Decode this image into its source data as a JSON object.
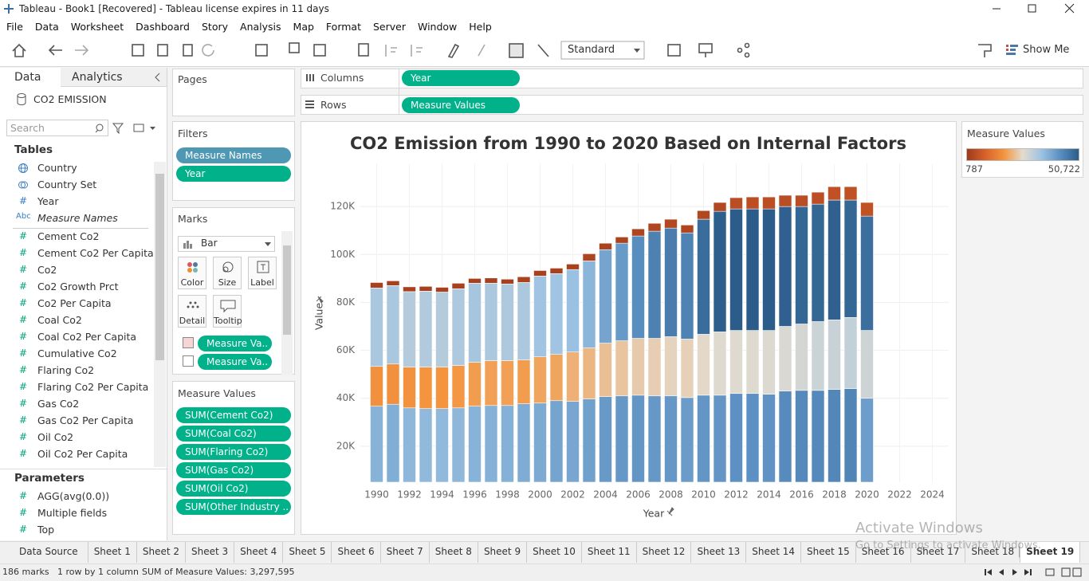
{
  "window": {
    "title": "Tableau - Book1 [Recovered] - Tableau license expires in 11 days"
  },
  "menu": [
    "File",
    "Data",
    "Worksheet",
    "Dashboard",
    "Story",
    "Analysis",
    "Map",
    "Format",
    "Server",
    "Window",
    "Help"
  ],
  "toolbar": {
    "view_mode": "Standard",
    "show_me": "Show Me"
  },
  "data_pane": {
    "tabs": [
      "Data",
      "Analytics"
    ],
    "datasource": "CO2 EMISSION",
    "search_placeholder": "Search",
    "tables_heading": "Tables",
    "fields": [
      {
        "icon": "globe",
        "name": "Country"
      },
      {
        "icon": "set",
        "name": "Country Set"
      },
      {
        "kind": "#",
        "role": "dimension",
        "name": "Year"
      },
      {
        "kind": "Abc",
        "role": "dimension",
        "name": "Measure Names",
        "italic": true
      },
      {
        "kind": "#",
        "role": "measure",
        "name": "Cement Co2"
      },
      {
        "kind": "#",
        "role": "measure",
        "name": "Cement Co2 Per Capita"
      },
      {
        "kind": "#",
        "role": "measure",
        "name": "Co2"
      },
      {
        "kind": "#",
        "role": "measure",
        "name": "Co2 Growth Prct"
      },
      {
        "kind": "#",
        "role": "measure",
        "name": "Co2 Per Capita"
      },
      {
        "kind": "#",
        "role": "measure",
        "name": "Coal Co2"
      },
      {
        "kind": "#",
        "role": "measure",
        "name": "Coal Co2 Per Capita"
      },
      {
        "kind": "#",
        "role": "measure",
        "name": "Cumulative Co2"
      },
      {
        "kind": "#",
        "role": "measure",
        "name": "Flaring Co2"
      },
      {
        "kind": "#",
        "role": "measure",
        "name": "Flaring Co2 Per Capita"
      },
      {
        "kind": "#",
        "role": "measure",
        "name": "Gas Co2"
      },
      {
        "kind": "#",
        "role": "measure",
        "name": "Gas Co2 Per Capita"
      },
      {
        "kind": "#",
        "role": "measure",
        "name": "Oil Co2"
      },
      {
        "kind": "#",
        "role": "measure",
        "name": "Oil Co2 Per Capita"
      }
    ],
    "parameters_heading": "Parameters",
    "parameters": [
      {
        "kind": "#",
        "role": "measure",
        "name": "AGG(avg(0.0))"
      },
      {
        "kind": "#",
        "role": "measure",
        "name": "Multiple fields"
      },
      {
        "kind": "#",
        "role": "measure",
        "name": "Top"
      }
    ]
  },
  "shelves": {
    "pages": "Pages",
    "columns": {
      "label": "Columns",
      "pill": "Year"
    },
    "rows": {
      "label": "Rows",
      "pill": "Measure Values"
    }
  },
  "filters": {
    "title": "Filters",
    "pills": [
      {
        "text": "Measure Names",
        "role": "dimension"
      },
      {
        "text": "Year",
        "role": "continuous"
      }
    ]
  },
  "marks": {
    "title": "Marks",
    "mark_type": "Bar",
    "buttons": [
      "Color",
      "Size",
      "Label",
      "Detail",
      "Tooltip"
    ],
    "pills": [
      "Measure Va..",
      "Measure Va.."
    ]
  },
  "measure_values": {
    "title": "Measure Values",
    "pills": [
      "SUM(Cement Co2)",
      "SUM(Coal Co2)",
      "SUM(Flaring Co2)",
      "SUM(Gas Co2)",
      "SUM(Oil Co2)",
      "SUM(Other Industry .."
    ]
  },
  "chart_data": {
    "type": "stacked_bar",
    "title": "CO2 Emission from 1990 to 2020 Based on Internal Factors",
    "x_label": "Year",
    "y_label": "Value",
    "x": [
      1990,
      1991,
      1992,
      1993,
      1994,
      1995,
      1996,
      1997,
      1998,
      1999,
      2000,
      2001,
      2002,
      2003,
      2004,
      2005,
      2006,
      2007,
      2008,
      2009,
      2010,
      2011,
      2012,
      2013,
      2014,
      2015,
      2016,
      2017,
      2018,
      2019,
      2020
    ],
    "series": [
      {
        "values": [
          36700,
          37500,
          36000,
          35700,
          35700,
          36000,
          36700,
          37000,
          37000,
          37700,
          38000,
          39000,
          38700,
          39700,
          40700,
          41000,
          41300,
          41000,
          41000,
          40300,
          41300,
          41300,
          42000,
          42000,
          41700,
          43000,
          43300,
          43300,
          43700,
          44000,
          40000
        ]
      },
      {
        "values": [
          16600,
          16800,
          17000,
          17300,
          17300,
          17700,
          18300,
          18700,
          18700,
          18300,
          19300,
          19300,
          20600,
          21300,
          22300,
          23000,
          23700,
          24000,
          24700,
          24400,
          25400,
          26400,
          26300,
          26300,
          26600,
          27000,
          27700,
          28700,
          29000,
          29700,
          28300
        ]
      },
      {
        "values": [
          32700,
          32700,
          31500,
          31700,
          31300,
          32000,
          33000,
          32300,
          32000,
          32300,
          33700,
          33700,
          34400,
          36300,
          39000,
          40700,
          42700,
          44700,
          45300,
          44300,
          48000,
          50300,
          50700,
          50700,
          50700,
          50000,
          49000,
          49000,
          50000,
          49000,
          47700
        ]
      },
      {
        "values": [
          2300,
          2000,
          2000,
          2000,
          2000,
          2300,
          2000,
          2200,
          2000,
          2400,
          2300,
          2300,
          2300,
          3000,
          2700,
          2600,
          3000,
          3300,
          3700,
          3300,
          3600,
          3700,
          4700,
          5000,
          5000,
          4700,
          4700,
          5000,
          5600,
          5600,
          5700
        ]
      }
    ],
    "xlim": [
      1989,
      2025
    ],
    "xticks": [
      1990,
      1992,
      1994,
      1996,
      1998,
      2000,
      2002,
      2004,
      2006,
      2008,
      2010,
      2012,
      2014,
      2016,
      2018,
      2020,
      2022,
      2024
    ],
    "ylim": [
      5000,
      138000
    ],
    "yticks": [
      {
        "value": 20000,
        "label": "20K"
      },
      {
        "value": 40000,
        "label": "40K"
      },
      {
        "value": 60000,
        "label": "60K"
      },
      {
        "value": 80000,
        "label": "80K"
      },
      {
        "value": 100000,
        "label": "100K"
      },
      {
        "value": 120000,
        "label": "120K"
      }
    ],
    "grid": true,
    "color_legend": {
      "title": "Measure Values",
      "min": 787,
      "max": {
        "value": 50722,
        "label": "50,722"
      },
      "colors": [
        "#9d3a1b",
        "#d9622b",
        "#f4953f",
        "#e3dccf",
        "#9dc3e2",
        "#5a8fc1",
        "#2b5c8a"
      ]
    }
  },
  "sheet_tabs": {
    "data_source": "Data Source",
    "sheets": [
      "Sheet 1",
      "Sheet 2",
      "Sheet 3",
      "Sheet 4",
      "Sheet 5",
      "Sheet 6",
      "Sheet 7",
      "Sheet 8",
      "Sheet 9",
      "Sheet 10",
      "Sheet 11",
      "Sheet 12",
      "Sheet 13",
      "Sheet 14",
      "Sheet 15",
      "Sheet 16",
      "Sheet 17",
      "Sheet 18",
      "Sheet 19"
    ],
    "active": 18
  },
  "status_bar": [
    "186 marks",
    "1 row by 1 column",
    "SUM of Measure Values: 3,297,595"
  ],
  "watermark": [
    "Activate Windows",
    "Go to Settings to activate Windows."
  ]
}
